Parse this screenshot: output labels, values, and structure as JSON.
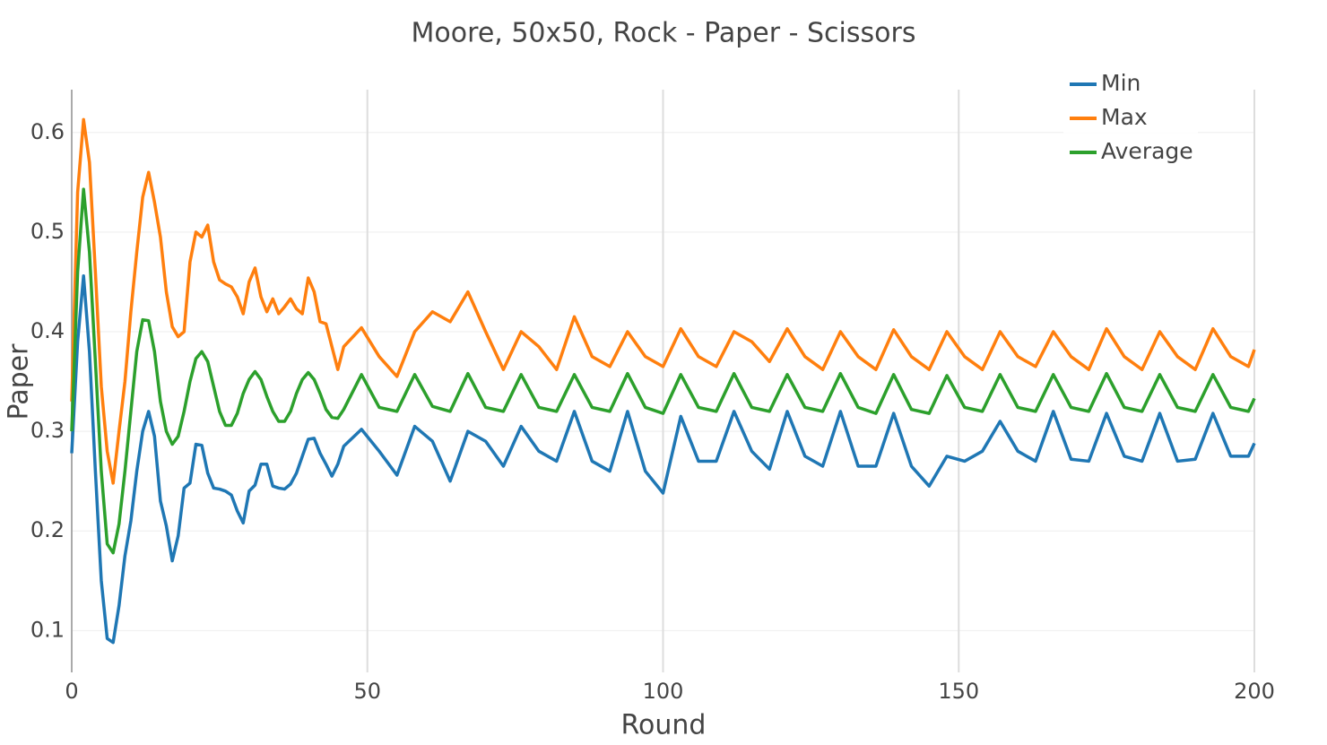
{
  "chart_data": {
    "type": "line",
    "title": "Moore, 50x50, Rock - Paper - Scissors",
    "x_label": "Round",
    "y_label": "Paper",
    "x": [
      0,
      1,
      2,
      3,
      4,
      5,
      6,
      7,
      8,
      9,
      10,
      11,
      12,
      13,
      14,
      15,
      16,
      17,
      18,
      19,
      20,
      21,
      22,
      23,
      24,
      25,
      26,
      27,
      28,
      29,
      30,
      31,
      32,
      33,
      34,
      35,
      36,
      37,
      38,
      39,
      40,
      41,
      42,
      43,
      44,
      45,
      46,
      49,
      52,
      55,
      58,
      61,
      64,
      67,
      70,
      73,
      76,
      79,
      82,
      85,
      88,
      91,
      94,
      97,
      100,
      103,
      106,
      109,
      112,
      115,
      118,
      121,
      124,
      127,
      130,
      133,
      136,
      139,
      142,
      145,
      148,
      151,
      154,
      157,
      160,
      163,
      166,
      169,
      172,
      175,
      178,
      181,
      184,
      187,
      190,
      193,
      196,
      199,
      200
    ],
    "series": [
      {
        "name": "Min",
        "color": "#1f77b4",
        "values": [
          0.278,
          0.39,
          0.456,
          0.38,
          0.26,
          0.15,
          0.092,
          0.088,
          0.125,
          0.175,
          0.21,
          0.26,
          0.3,
          0.32,
          0.295,
          0.23,
          0.205,
          0.17,
          0.195,
          0.243,
          0.248,
          0.287,
          0.286,
          0.258,
          0.243,
          0.242,
          0.24,
          0.236,
          0.22,
          0.208,
          0.24,
          0.246,
          0.267,
          0.267,
          0.245,
          0.243,
          0.242,
          0.247,
          0.258,
          0.275,
          0.292,
          0.293,
          0.278,
          0.267,
          0.255,
          0.267,
          0.285,
          0.302,
          0.28,
          0.256,
          0.305,
          0.29,
          0.25,
          0.3,
          0.29,
          0.265,
          0.305,
          0.28,
          0.27,
          0.32,
          0.27,
          0.26,
          0.32,
          0.26,
          0.238,
          0.315,
          0.27,
          0.27,
          0.32,
          0.28,
          0.262,
          0.32,
          0.275,
          0.265,
          0.32,
          0.265,
          0.265,
          0.318,
          0.265,
          0.245,
          0.275,
          0.27,
          0.28,
          0.31,
          0.28,
          0.27,
          0.32,
          0.272,
          0.27,
          0.318,
          0.275,
          0.27,
          0.318,
          0.27,
          0.272,
          0.318,
          0.275,
          0.275,
          0.288
        ]
      },
      {
        "name": "Max",
        "color": "#ff7f0e",
        "values": [
          0.33,
          0.54,
          0.613,
          0.57,
          0.46,
          0.345,
          0.28,
          0.248,
          0.3,
          0.35,
          0.42,
          0.48,
          0.535,
          0.56,
          0.53,
          0.495,
          0.44,
          0.405,
          0.395,
          0.4,
          0.47,
          0.5,
          0.495,
          0.507,
          0.47,
          0.452,
          0.448,
          0.445,
          0.435,
          0.418,
          0.45,
          0.464,
          0.435,
          0.42,
          0.433,
          0.418,
          0.425,
          0.433,
          0.423,
          0.418,
          0.454,
          0.44,
          0.41,
          0.408,
          0.385,
          0.362,
          0.385,
          0.404,
          0.375,
          0.355,
          0.4,
          0.42,
          0.41,
          0.44,
          0.4,
          0.362,
          0.4,
          0.385,
          0.362,
          0.415,
          0.375,
          0.365,
          0.4,
          0.375,
          0.365,
          0.403,
          0.375,
          0.365,
          0.4,
          0.39,
          0.37,
          0.403,
          0.375,
          0.362,
          0.4,
          0.375,
          0.362,
          0.402,
          0.375,
          0.362,
          0.4,
          0.375,
          0.362,
          0.4,
          0.375,
          0.365,
          0.4,
          0.375,
          0.362,
          0.403,
          0.375,
          0.362,
          0.4,
          0.375,
          0.362,
          0.403,
          0.375,
          0.365,
          0.382
        ]
      },
      {
        "name": "Average",
        "color": "#2ca02c",
        "values": [
          0.3,
          0.46,
          0.543,
          0.48,
          0.37,
          0.26,
          0.187,
          0.178,
          0.207,
          0.26,
          0.32,
          0.38,
          0.412,
          0.411,
          0.38,
          0.33,
          0.3,
          0.287,
          0.295,
          0.32,
          0.35,
          0.373,
          0.38,
          0.37,
          0.345,
          0.32,
          0.306,
          0.306,
          0.318,
          0.338,
          0.352,
          0.36,
          0.352,
          0.335,
          0.32,
          0.31,
          0.31,
          0.32,
          0.338,
          0.352,
          0.359,
          0.352,
          0.338,
          0.322,
          0.314,
          0.313,
          0.322,
          0.357,
          0.324,
          0.32,
          0.357,
          0.325,
          0.32,
          0.358,
          0.324,
          0.32,
          0.357,
          0.324,
          0.32,
          0.357,
          0.324,
          0.32,
          0.358,
          0.324,
          0.318,
          0.357,
          0.324,
          0.32,
          0.358,
          0.324,
          0.32,
          0.357,
          0.324,
          0.32,
          0.358,
          0.324,
          0.318,
          0.357,
          0.322,
          0.318,
          0.356,
          0.324,
          0.32,
          0.357,
          0.324,
          0.32,
          0.357,
          0.324,
          0.32,
          0.358,
          0.324,
          0.32,
          0.357,
          0.324,
          0.32,
          0.357,
          0.324,
          0.32,
          0.333
        ]
      }
    ],
    "xlim": [
      0,
      200
    ],
    "xticks": [
      0,
      50,
      100,
      150,
      200
    ],
    "ylim": [
      0.058,
      0.643
    ],
    "yticks": [
      0.1,
      0.2,
      0.3,
      0.4,
      0.5,
      0.6
    ],
    "grid": true
  }
}
